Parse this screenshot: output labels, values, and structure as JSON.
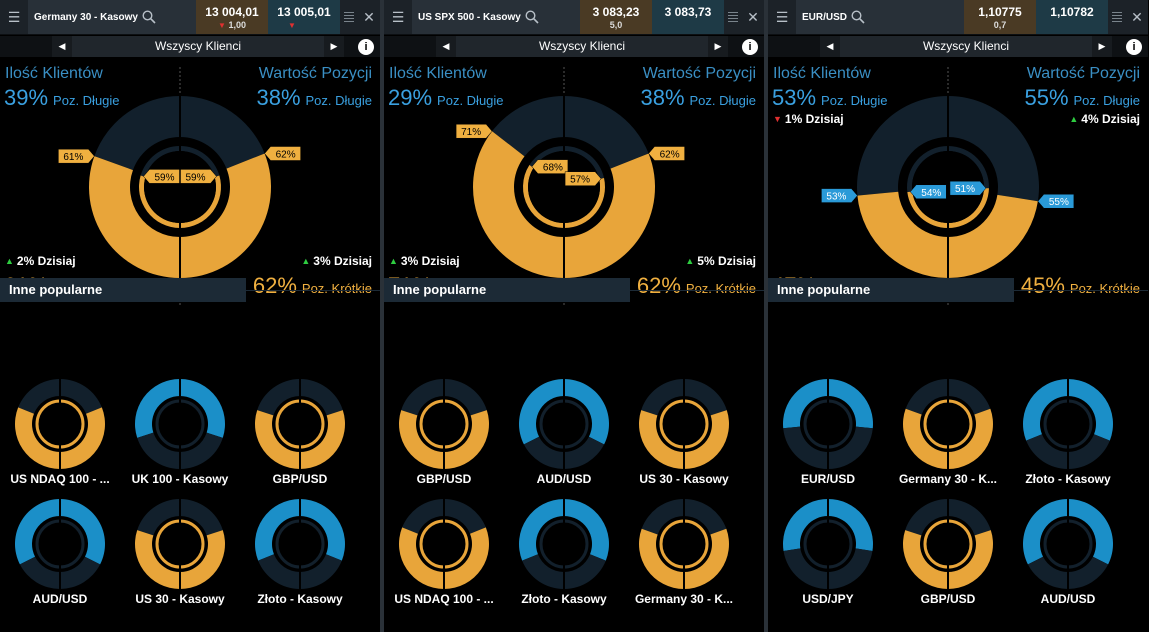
{
  "colors": {
    "gold": "#e8a53a",
    "gold_dark": "#c88a24",
    "blue": "#1b8fc8",
    "navy": "#12202c",
    "label_bg": "#f0b040",
    "label_bg_blue": "#2a9ad8"
  },
  "icons": {
    "menu": "hamburger-icon",
    "search": "search-icon",
    "close": "close-icon",
    "info": "info-icon"
  },
  "panels": [
    {
      "symbol": "Germany 30 - Kasowy",
      "sell": "13 004,01",
      "buy": "13 005,01",
      "spread": "1,00",
      "sell_arrow": "▼",
      "buy_arrow": "▼",
      "selector": "Wszyscy Klienci",
      "clients_header": "Ilość Klientów",
      "value_header": "Wartość Pozycji",
      "clients_long_pct": "39%",
      "value_long_pct": "38%",
      "long_label": "Poz. Długie",
      "short_label": "Poz. Krótkie",
      "clients_short_pct": "61%",
      "value_short_pct": "62%",
      "today_left": "2% Dzisiaj",
      "today_left_dir": "up",
      "today_right": "3% Dzisiaj",
      "today_right_dir": "up",
      "top_today_left": "",
      "top_today_right": "",
      "outer_left_label": "61%",
      "outer_right_label": "62%",
      "inner_left_label": "59%",
      "inner_right_label": "59%",
      "clients_short": 61,
      "value_short": 62,
      "inner_left_short": 59,
      "inner_right_short": 59,
      "label_theme": "gold",
      "popular_header": "Inne popularne",
      "popular": [
        {
          "name": "US NDAQ 100 - ...",
          "short": 62
        },
        {
          "name": "UK 100 - Kasowy",
          "short": 40
        },
        {
          "name": "GBP/USD",
          "short": 60
        },
        {
          "name": "AUD/USD",
          "short": 35
        },
        {
          "name": "US 30 - Kasowy",
          "short": 60
        },
        {
          "name": "Złoto - Kasowy",
          "short": 38
        }
      ]
    },
    {
      "symbol": "US SPX 500 - Kasowy",
      "sell": "3 083,23",
      "buy": "3 083,73",
      "spread": "5,0",
      "sell_arrow": "",
      "buy_arrow": "",
      "selector": "Wszyscy Klienci",
      "clients_header": "Ilość Klientów",
      "value_header": "Wartość Pozycji",
      "clients_long_pct": "29%",
      "value_long_pct": "38%",
      "long_label": "Poz. Długie",
      "short_label": "Poz. Krótkie",
      "clients_short_pct": "71%",
      "value_short_pct": "62%",
      "today_left": "3% Dzisiaj",
      "today_left_dir": "up",
      "today_right": "5% Dzisiaj",
      "today_right_dir": "up",
      "top_today_left": "",
      "top_today_right": "",
      "outer_left_label": "71%",
      "outer_right_label": "62%",
      "inner_left_label": "68%",
      "inner_right_label": "57%",
      "clients_short": 71,
      "value_short": 62,
      "inner_left_short": 68,
      "inner_right_short": 57,
      "label_theme": "gold",
      "popular_header": "Inne popularne",
      "popular": [
        {
          "name": "GBP/USD",
          "short": 60
        },
        {
          "name": "AUD/USD",
          "short": 35
        },
        {
          "name": "US 30 - Kasowy",
          "short": 60
        },
        {
          "name": "US NDAQ 100 - ...",
          "short": 62
        },
        {
          "name": "Złoto - Kasowy",
          "short": 38
        },
        {
          "name": "Germany 30 - K...",
          "short": 61
        }
      ]
    },
    {
      "symbol": "EUR/USD",
      "sell": "1,10775",
      "buy": "1,10782",
      "spread": "0,7",
      "sell_arrow": "",
      "buy_arrow": "",
      "selector": "Wszyscy Klienci",
      "clients_header": "Ilość Klientów",
      "value_header": "Wartość Pozycji",
      "clients_long_pct": "53%",
      "value_long_pct": "55%",
      "long_label": "Poz. Długie",
      "short_label": "Poz. Krótkie",
      "clients_short_pct": "47%",
      "value_short_pct": "45%",
      "today_left": "",
      "today_left_dir": "",
      "today_right": "",
      "today_right_dir": "",
      "top_today_left": "1% Dzisiaj",
      "top_today_left_dir": "down",
      "top_today_right": "4% Dzisiaj",
      "top_today_right_dir": "up",
      "outer_left_label": "53%",
      "outer_right_label": "55%",
      "inner_left_label": "54%",
      "inner_right_label": "51%",
      "clients_short": 47,
      "value_short": 45,
      "inner_left_short": 46,
      "inner_right_short": 49,
      "label_theme": "blue",
      "popular_header": "Inne popularne",
      "popular": [
        {
          "name": "EUR/USD",
          "short": 47
        },
        {
          "name": "Germany 30 - K...",
          "short": 61
        },
        {
          "name": "Złoto - Kasowy",
          "short": 38
        },
        {
          "name": "USD/JPY",
          "short": 45
        },
        {
          "name": "GBP/USD",
          "short": 60
        },
        {
          "name": "AUD/USD",
          "short": 35
        }
      ]
    }
  ]
}
